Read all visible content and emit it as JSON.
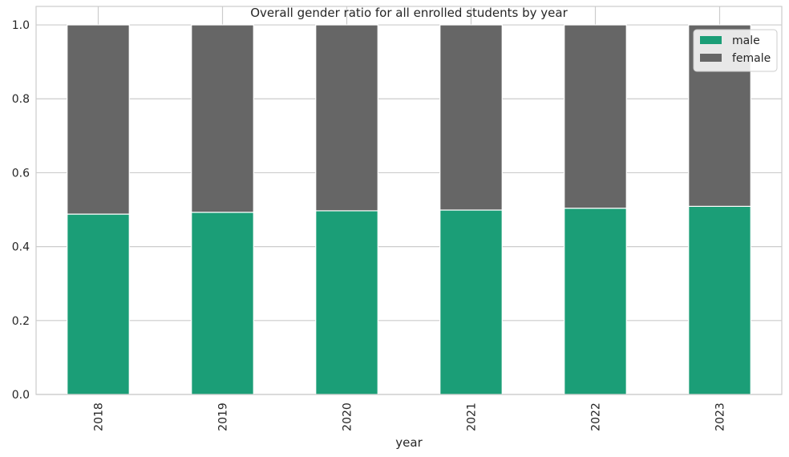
{
  "chart_data": {
    "type": "bar",
    "stacked": true,
    "title": "Overall gender ratio for all enrolled students by year",
    "xlabel": "year",
    "ylabel": "",
    "categories": [
      "2018",
      "2019",
      "2020",
      "2021",
      "2022",
      "2023"
    ],
    "series": [
      {
        "name": "male",
        "color": "#1b9e77",
        "values": [
          0.488,
          0.493,
          0.497,
          0.499,
          0.504,
          0.509
        ]
      },
      {
        "name": "female",
        "color": "#666666",
        "values": [
          0.512,
          0.507,
          0.503,
          0.501,
          0.496,
          0.491
        ]
      }
    ],
    "ylim": [
      0,
      1.05
    ],
    "yticks": [
      "0.0",
      "0.2",
      "0.4",
      "0.6",
      "0.8",
      "1.0"
    ],
    "grid": true,
    "legend": {
      "position": "top-right",
      "entries": [
        "male",
        "female"
      ]
    }
  }
}
